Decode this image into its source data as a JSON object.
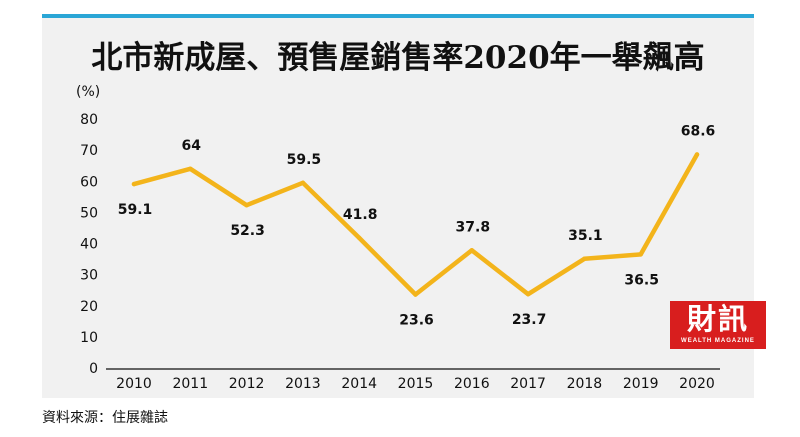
{
  "chart_data": {
    "type": "line",
    "title": "北市新成屋、預售屋銷售率2020年一舉飆高",
    "ylabel": "(%)",
    "xlabel": "",
    "ylim": [
      0,
      80
    ],
    "yticks": [
      0,
      10,
      20,
      30,
      40,
      50,
      60,
      70,
      80
    ],
    "categories": [
      "2010",
      "2011",
      "2012",
      "2013",
      "2014",
      "2015",
      "2016",
      "2017",
      "2018",
      "2019",
      "2020"
    ],
    "values": [
      59.1,
      64,
      52.3,
      59.5,
      41.8,
      23.6,
      37.8,
      23.7,
      35.1,
      36.5,
      68.6
    ],
    "value_labels": [
      "59.1",
      "64",
      "52.3",
      "59.5",
      "41.8",
      "23.6",
      "37.8",
      "23.7",
      "35.1",
      "36.5",
      "68.6"
    ],
    "line_color": "#f3b41b",
    "background": "#f1f1f1",
    "grid": false
  },
  "source": "資料來源：住展雜誌",
  "logo": {
    "main": "財訊",
    "sub": "WEALTH MAGAZINE",
    "color": "#d81e1e"
  },
  "accent_bar_color": "#2aa6d6"
}
